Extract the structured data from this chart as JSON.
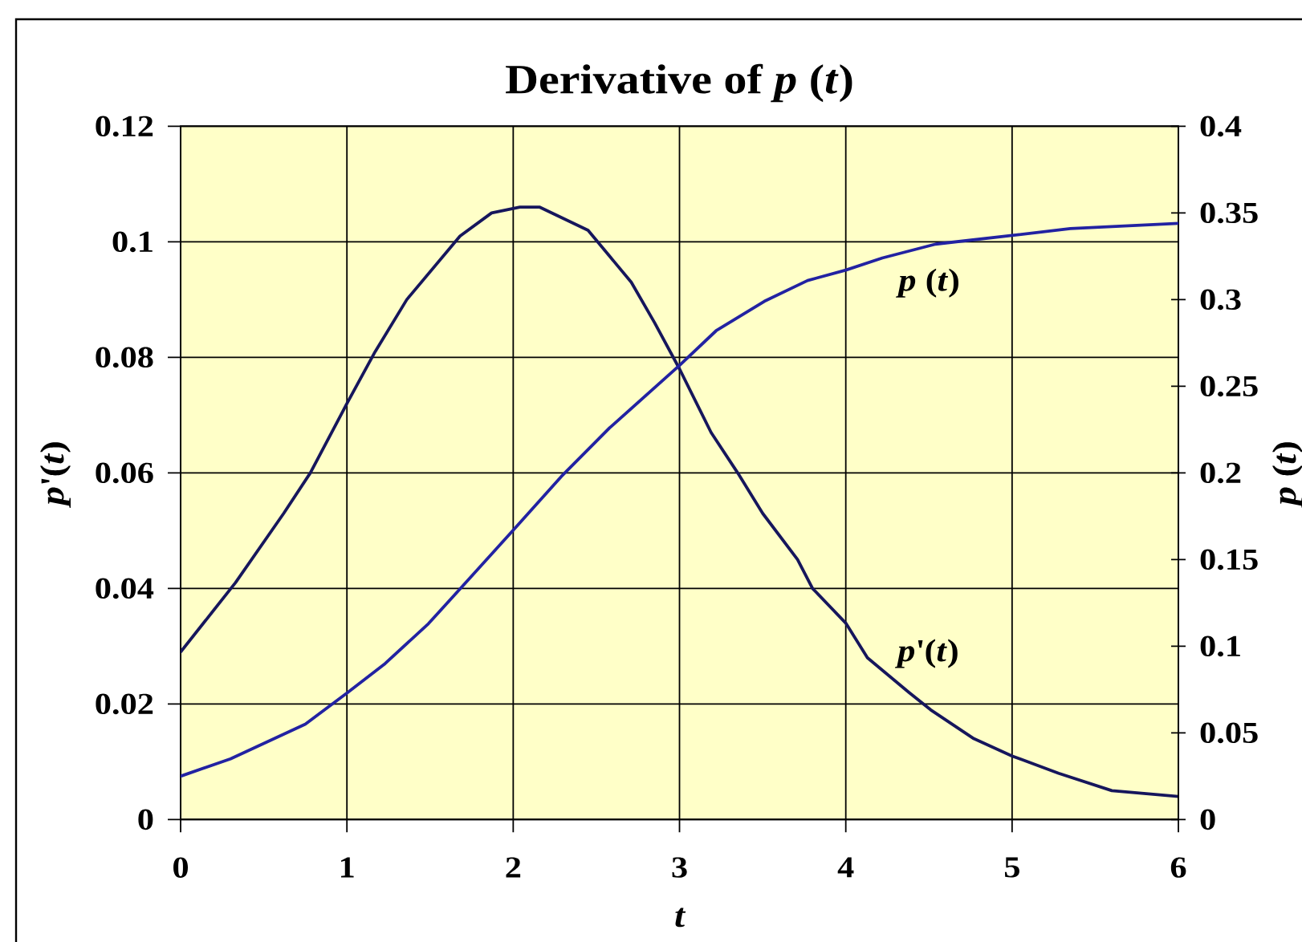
{
  "chart_data": {
    "type": "line",
    "title": "Derivative of *p* (*t*)",
    "xlabel": "t",
    "ylabel": "*p*'(*t*)",
    "y2label": "*p* (*t*)",
    "xlim": [
      0,
      6
    ],
    "xticks": [
      0,
      1,
      2,
      3,
      4,
      5,
      6
    ],
    "ylim": [
      0,
      0.12
    ],
    "yticks": [
      0,
      0.02,
      0.04,
      0.06,
      0.08,
      0.1,
      0.12
    ],
    "y2lim": [
      0,
      0.4
    ],
    "y2ticks": [
      0,
      0.05,
      0.1,
      0.15,
      0.2,
      0.25,
      0.3,
      0.35,
      0.4
    ],
    "grid": true,
    "series": [
      {
        "name": "*p*'(*t*)",
        "color": "#16165c",
        "x": [
          0,
          0.33,
          0.62,
          0.78,
          1.0,
          1.17,
          1.36,
          1.68,
          1.87,
          2.04,
          2.16,
          2.45,
          2.71,
          2.85,
          3.0,
          3.19,
          3.35,
          3.5,
          3.71,
          3.8,
          4.0,
          4.13,
          4.38,
          4.51,
          4.77,
          5.0,
          5.28,
          5.6,
          6.0
        ],
        "values": [
          0.029,
          0.041,
          0.053,
          0.06,
          0.072,
          0.081,
          0.09,
          0.101,
          0.105,
          0.106,
          0.106,
          0.102,
          0.093,
          0.086,
          0.078,
          0.067,
          0.06,
          0.053,
          0.045,
          0.04,
          0.034,
          0.028,
          0.022,
          0.019,
          0.014,
          0.011,
          0.008,
          0.005,
          0.004
        ]
      },
      {
        "name": "*p* (*t*)",
        "color": "#2222a2",
        "axis": "y2",
        "x": [
          0,
          0.3,
          0.75,
          1.0,
          1.23,
          1.49,
          1.68,
          2.0,
          2.29,
          2.58,
          3.0,
          3.22,
          3.51,
          3.77,
          4.0,
          4.22,
          4.54,
          5.0,
          5.35,
          6.0
        ],
        "values": [
          0.025,
          0.035,
          0.055,
          0.073,
          0.09,
          0.113,
          0.133,
          0.167,
          0.198,
          0.226,
          0.262,
          0.282,
          0.299,
          0.311,
          0.317,
          0.324,
          0.332,
          0.337,
          0.341,
          0.344
        ]
      }
    ]
  }
}
